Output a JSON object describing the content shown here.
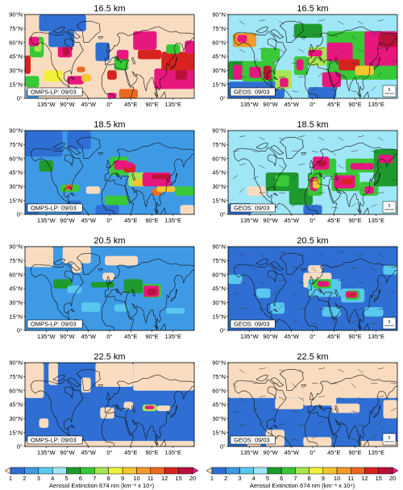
{
  "chart_data": {
    "type": "heatmap",
    "variable_label": "Aerosol Extinction 674 nm",
    "units_label": "(km⁻¹ x 10⁴)",
    "lat_ticks": [
      "0°",
      "15°N",
      "30°N",
      "45°N",
      "60°N",
      "75°N",
      "90°N"
    ],
    "lon_ticks": [
      "135°W",
      "90°W",
      "45°W",
      "0°",
      "45°E",
      "90°E",
      "135°E"
    ],
    "lat_range": [
      0,
      90
    ],
    "lon_range": [
      -180,
      180
    ],
    "colorbar": {
      "levels": [
        "1",
        "2",
        "3",
        "4",
        "5",
        "6",
        "7",
        "8",
        "9",
        "10",
        "11",
        "12",
        "15",
        "20"
      ],
      "colors": [
        "#f9dcc0",
        "#2f6fd3",
        "#3f9ae6",
        "#59c8f0",
        "#9fe6f6",
        "#1e9a2e",
        "#38c838",
        "#a6e650",
        "#f0f03a",
        "#f6c530",
        "#f29a2b",
        "#ea6a24",
        "#d72320",
        "#b8123a",
        "#e8177e"
      ]
    },
    "panels": [
      {
        "title": "16.5 km",
        "tag": "OMPS-LP: 09/03",
        "source": "OMPS-LP",
        "altitude_km": 16.5
      },
      {
        "title": "16.5 km",
        "tag": "GEOS: 09/03",
        "source": "GEOS",
        "altitude_km": 16.5,
        "vector_ref": "5"
      },
      {
        "title": "18.5 km",
        "tag": "OMPS-LP: 09/03",
        "source": "OMPS-LP",
        "altitude_km": 18.5
      },
      {
        "title": "18.5 km",
        "tag": "GEOS: 09/03",
        "source": "GEOS",
        "altitude_km": 18.5,
        "vector_ref": "5"
      },
      {
        "title": "20.5 km",
        "tag": "OMPS-LP: 09/03",
        "source": "OMPS-LP",
        "altitude_km": 20.5
      },
      {
        "title": "20.5 km",
        "tag": "GEOS: 09/03",
        "source": "GEOS",
        "altitude_km": 20.5,
        "vector_ref": "5"
      },
      {
        "title": "22.5 km",
        "tag": "OMPS-LP: 09/03",
        "source": "OMPS-LP",
        "altitude_km": 22.5
      },
      {
        "title": "22.5 km",
        "tag": "GEOS: 09/03",
        "source": "GEOS",
        "altitude_km": 22.5,
        "vector_ref": "5"
      }
    ]
  }
}
